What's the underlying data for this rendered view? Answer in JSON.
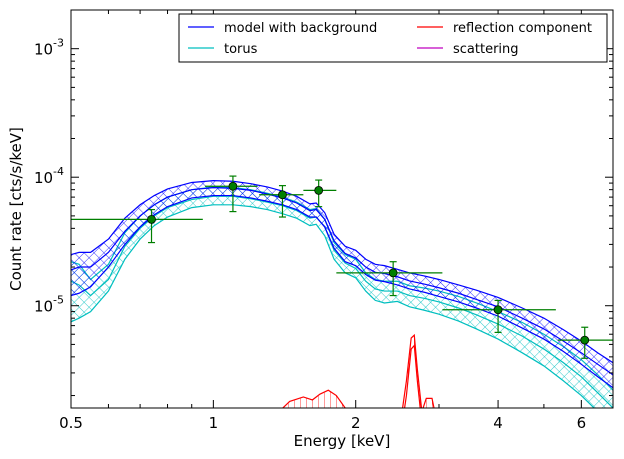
{
  "chart_data": {
    "type": "line",
    "xlabel": "Energy [keV]",
    "ylabel": "Count rate [cts/s/keV]",
    "xscale": "log",
    "yscale": "log",
    "xlim": [
      0.5,
      7.0
    ],
    "ylim": [
      1.6e-06,
      0.002
    ],
    "grid": false,
    "legend_position": "top-right",
    "x_ticks": [
      {
        "value": 0.5,
        "label": "0.5"
      },
      {
        "value": 1,
        "label": "1"
      },
      {
        "value": 2,
        "label": "2"
      },
      {
        "value": 4,
        "label": "4"
      },
      {
        "value": 6,
        "label": "6"
      }
    ],
    "y_ticks": [
      {
        "value": 1e-05,
        "base": "10",
        "exp": "-5"
      },
      {
        "value": 0.0001,
        "base": "10",
        "exp": "-4"
      },
      {
        "value": 0.001,
        "base": "10",
        "exp": "-3"
      }
    ],
    "x": [
      0.5,
      0.52,
      0.55,
      0.6,
      0.65,
      0.7,
      0.75,
      0.8,
      0.9,
      1.0,
      1.1,
      1.2,
      1.3,
      1.4,
      1.5,
      1.6,
      1.65,
      1.72,
      1.8,
      1.9,
      2.0,
      2.1,
      2.2,
      2.3,
      2.45,
      2.6,
      2.8,
      3.0,
      3.3,
      3.6,
      4.0,
      4.5,
      5.0,
      5.5,
      6.0,
      6.5,
      7.0
    ],
    "series": [
      {
        "name": "model with background",
        "color": "#0000ff",
        "band": true,
        "upper": [
          2.5e-05,
          2.6e-05,
          2.6e-05,
          3.3e-05,
          4.8e-05,
          6.1e-05,
          7.2e-05,
          8.1e-05,
          9.1e-05,
          9.4e-05,
          9.3e-05,
          8.9e-05,
          8.4e-05,
          7.8e-05,
          7.1e-05,
          6.2e-05,
          6.3e-05,
          5.3e-05,
          3.6e-05,
          2.9e-05,
          2.7e-05,
          2.3e-05,
          2.1e-05,
          2.05e-05,
          1.92e-05,
          1.8e-05,
          1.7e-05,
          1.6e-05,
          1.45e-05,
          1.32e-05,
          1.16e-05,
          9.6e-06,
          8e-06,
          6.5e-06,
          5.3e-06,
          4.3e-06,
          3.6e-06
        ],
        "values": [
          1.9e-05,
          2e-05,
          2e-05,
          2.6e-05,
          3.8e-05,
          5e-05,
          6.1e-05,
          7e-05,
          8e-05,
          8.3e-05,
          8.2e-05,
          7.9e-05,
          7.4e-05,
          6.9e-05,
          6.3e-05,
          5.5e-05,
          5.6e-05,
          4.7e-05,
          3.2e-05,
          2.55e-05,
          2.35e-05,
          2e-05,
          1.82e-05,
          1.78e-05,
          1.68e-05,
          1.56e-05,
          1.47e-05,
          1.38e-05,
          1.25e-05,
          1.12e-05,
          9.8e-06,
          8e-06,
          6.6e-06,
          5.3e-06,
          4.3e-06,
          3.5e-06,
          2.9e-06
        ],
        "lower": [
          1.2e-05,
          1.25e-05,
          1.4e-05,
          2e-05,
          3e-05,
          4.1e-05,
          5.1e-05,
          5.9e-05,
          6.9e-05,
          7.2e-05,
          7.2e-05,
          6.9e-05,
          6.5e-05,
          6.1e-05,
          5.6e-05,
          4.9e-05,
          4.9e-05,
          4.1e-05,
          2.8e-05,
          2.2e-05,
          2.05e-05,
          1.75e-05,
          1.58e-05,
          1.54e-05,
          1.45e-05,
          1.35e-05,
          1.27e-05,
          1.18e-05,
          1.07e-05,
          9.6e-06,
          8.3e-06,
          6.7e-06,
          5.5e-06,
          4.4e-06,
          3.5e-06,
          2.8e-06,
          2.3e-06
        ]
      },
      {
        "name": "torus",
        "color": "#00bfbf",
        "band": true,
        "upper": [
          2.2e-05,
          2.1e-05,
          1.6e-05,
          2.1e-05,
          3.7e-05,
          5e-05,
          6.1e-05,
          7e-05,
          8e-05,
          8.4e-05,
          8.3e-05,
          8e-05,
          7.5e-05,
          7e-05,
          6.4e-05,
          5.6e-05,
          5.7e-05,
          4.7e-05,
          3.1e-05,
          2.5e-05,
          2.3e-05,
          1.8e-05,
          1.6e-05,
          1.55e-05,
          1.55e-05,
          1.43e-05,
          1.37e-05,
          1.3e-05,
          1.18e-05,
          1.05e-05,
          9e-06,
          7.4e-06,
          6e-06,
          4.8e-06,
          3.8e-06,
          2.9e-06,
          2.2e-06
        ],
        "values": [
          1.55e-05,
          1.45e-05,
          1.2e-05,
          1.6e-05,
          2.9e-05,
          4e-05,
          5e-05,
          5.8e-05,
          6.7e-05,
          7.1e-05,
          7.1e-05,
          6.8e-05,
          6.4e-05,
          6e-05,
          5.5e-05,
          4.8e-05,
          4.9e-05,
          4.1e-05,
          2.7e-05,
          2.15e-05,
          1.95e-05,
          1.55e-05,
          1.35e-05,
          1.3e-05,
          1.3e-05,
          1.2e-05,
          1.14e-05,
          1.07e-05,
          9.6e-06,
          8.5e-06,
          7.2e-06,
          5.8e-06,
          4.6e-06,
          3.6e-06,
          2.8e-06,
          2.1e-06,
          1.6e-06
        ],
        "lower": [
          7.5e-06,
          8e-06,
          9e-06,
          1.3e-05,
          2.3e-05,
          3.3e-05,
          4.2e-05,
          4.9e-05,
          5.8e-05,
          6.1e-05,
          6.1e-05,
          5.9e-05,
          5.6e-05,
          5.2e-05,
          4.8e-05,
          4.2e-05,
          4.3e-05,
          3.5e-05,
          2.3e-05,
          1.8e-05,
          1.65e-05,
          1.3e-05,
          1.1e-05,
          1.05e-05,
          1.08e-05,
          9.8e-06,
          9.2e-06,
          8.6e-06,
          7.6e-06,
          6.6e-06,
          5.5e-06,
          4.3e-06,
          3.4e-06,
          2.6e-06,
          2e-06,
          1.5e-06,
          1.1e-06
        ]
      }
    ],
    "reflection_component": {
      "name": "reflection component",
      "color": "#ff0000",
      "x": [
        1.35,
        1.45,
        1.55,
        1.62,
        1.68,
        1.75,
        1.82,
        1.9,
        2.0,
        2.2,
        2.4,
        2.5,
        2.56,
        2.62,
        2.66,
        2.7,
        2.76,
        2.82,
        2.9,
        2.95,
        3.0,
        3.05,
        3.2
      ],
      "upper": [
        1.4e-06,
        1.8e-06,
        1.95e-06,
        1.85e-06,
        2.05e-06,
        2.2e-06,
        2e-06,
        1.6e-06,
        1.2e-06,
        1e-06,
        1e-06,
        1.4e-06,
        2.6e-06,
        5.6e-06,
        5.9e-06,
        3.2e-06,
        1.5e-06,
        1.9e-06,
        1.9e-06,
        1.4e-06,
        1.1e-06,
        1e-06,
        1e-06
      ],
      "lower": [
        1e-06,
        1.3e-06,
        1.45e-06,
        1.4e-06,
        1.5e-06,
        1.6e-06,
        1.5e-06,
        1.2e-06,
        9e-07,
        8e-07,
        8e-07,
        1.1e-06,
        2e-06,
        4.6e-06,
        4.9e-06,
        2.6e-06,
        1.2e-06,
        1.5e-06,
        1.5e-06,
        1.1e-06,
        9e-07,
        8e-07,
        8e-07
      ]
    },
    "scattering": {
      "name": "scattering",
      "color": "#bf00bf"
    },
    "data_points": {
      "color": "#007f00",
      "points": [
        {
          "x": 0.74,
          "y": 4.7e-05,
          "xlo": 0.5,
          "xhi": 0.95,
          "ylo": 3.1e-05,
          "yhi": 5.6e-05
        },
        {
          "x": 1.1,
          "y": 8.5e-05,
          "xlo": 0.96,
          "xhi": 1.24,
          "ylo": 5.4e-05,
          "yhi": 0.000102
        },
        {
          "x": 1.4,
          "y": 7.3e-05,
          "xlo": 1.25,
          "xhi": 1.55,
          "ylo": 4.9e-05,
          "yhi": 8.6e-05
        },
        {
          "x": 1.67,
          "y": 7.9e-05,
          "xlo": 1.55,
          "xhi": 1.82,
          "ylo": 5.9e-05,
          "yhi": 9.5e-05
        },
        {
          "x": 2.4,
          "y": 1.8e-05,
          "xlo": 1.82,
          "xhi": 3.05,
          "ylo": 1.2e-05,
          "yhi": 2.2e-05
        },
        {
          "x": 4.0,
          "y": 9.3e-06,
          "xlo": 3.05,
          "xhi": 5.3,
          "ylo": 6.2e-06,
          "yhi": 1.1e-05
        },
        {
          "x": 6.1,
          "y": 5.4e-06,
          "xlo": 5.35,
          "xhi": 7.0,
          "ylo": 3.9e-06,
          "yhi": 6.8e-06
        }
      ]
    },
    "legend": [
      {
        "label": "model with background",
        "color": "#0000ff"
      },
      {
        "label": "reflection component",
        "color": "#ff0000"
      },
      {
        "label": "torus",
        "color": "#00bfbf"
      },
      {
        "label": "scattering",
        "color": "#bf00bf"
      }
    ]
  }
}
